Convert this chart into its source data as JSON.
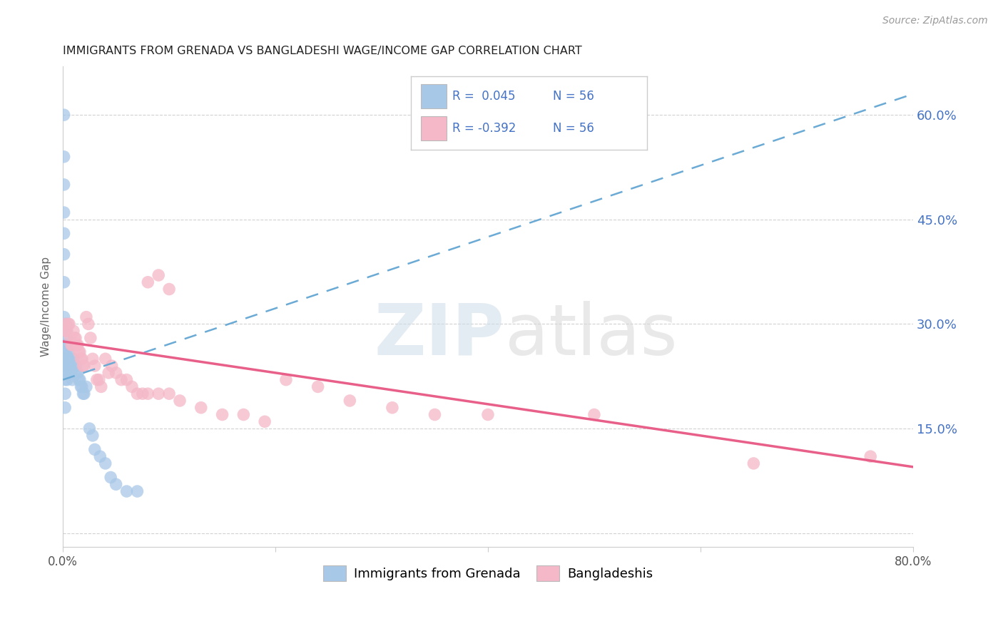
{
  "title": "IMMIGRANTS FROM GRENADA VS BANGLADESHI WAGE/INCOME GAP CORRELATION CHART",
  "source": "Source: ZipAtlas.com",
  "ylabel": "Wage/Income Gap",
  "right_yticklabels": [
    "",
    "15.0%",
    "30.0%",
    "45.0%",
    "60.0%"
  ],
  "xmin": 0.0,
  "xmax": 0.8,
  "ymin": -0.02,
  "ymax": 0.67,
  "legend_label1": "Immigrants from Grenada",
  "legend_label2": "Bangladeshis",
  "blue_color": "#a8c8e8",
  "blue_line_color": "#6aaad4",
  "pink_color": "#f4b8c8",
  "pink_line_color": "#e8608a",
  "watermark_zip": "ZIP",
  "watermark_atlas": "atlas",
  "bg_color": "#ffffff",
  "grid_color": "#cccccc",
  "title_color": "#222222",
  "right_axis_color": "#4472c4",
  "legend_text_color": "#4472c4",
  "blue_x": [
    0.001,
    0.001,
    0.001,
    0.001,
    0.001,
    0.001,
    0.001,
    0.001,
    0.001,
    0.002,
    0.002,
    0.002,
    0.002,
    0.002,
    0.002,
    0.002,
    0.003,
    0.003,
    0.003,
    0.003,
    0.003,
    0.004,
    0.004,
    0.004,
    0.004,
    0.005,
    0.005,
    0.005,
    0.006,
    0.006,
    0.007,
    0.007,
    0.008,
    0.009,
    0.01,
    0.011,
    0.012,
    0.013,
    0.014,
    0.015,
    0.016,
    0.017,
    0.018,
    0.019,
    0.02,
    0.022,
    0.025,
    0.028,
    0.03,
    0.035,
    0.04,
    0.045,
    0.05,
    0.06,
    0.07
  ],
  "blue_y": [
    0.6,
    0.54,
    0.5,
    0.46,
    0.43,
    0.4,
    0.36,
    0.31,
    0.27,
    0.26,
    0.25,
    0.24,
    0.23,
    0.22,
    0.2,
    0.18,
    0.3,
    0.29,
    0.28,
    0.27,
    0.26,
    0.25,
    0.24,
    0.23,
    0.22,
    0.26,
    0.25,
    0.24,
    0.25,
    0.24,
    0.24,
    0.23,
    0.23,
    0.22,
    0.25,
    0.24,
    0.24,
    0.23,
    0.23,
    0.22,
    0.22,
    0.21,
    0.21,
    0.2,
    0.2,
    0.21,
    0.15,
    0.14,
    0.12,
    0.11,
    0.1,
    0.08,
    0.07,
    0.06,
    0.06
  ],
  "pink_x": [
    0.002,
    0.003,
    0.004,
    0.005,
    0.006,
    0.007,
    0.008,
    0.009,
    0.01,
    0.011,
    0.012,
    0.013,
    0.014,
    0.015,
    0.016,
    0.017,
    0.018,
    0.019,
    0.02,
    0.022,
    0.024,
    0.026,
    0.028,
    0.03,
    0.032,
    0.034,
    0.036,
    0.04,
    0.043,
    0.046,
    0.05,
    0.055,
    0.06,
    0.065,
    0.07,
    0.075,
    0.08,
    0.09,
    0.1,
    0.11,
    0.13,
    0.15,
    0.17,
    0.19,
    0.21,
    0.24,
    0.27,
    0.31,
    0.35,
    0.4,
    0.5,
    0.65,
    0.76,
    0.08,
    0.09,
    0.1
  ],
  "pink_y": [
    0.3,
    0.29,
    0.29,
    0.3,
    0.3,
    0.28,
    0.27,
    0.27,
    0.29,
    0.28,
    0.28,
    0.27,
    0.27,
    0.26,
    0.26,
    0.25,
    0.25,
    0.24,
    0.24,
    0.31,
    0.3,
    0.28,
    0.25,
    0.24,
    0.22,
    0.22,
    0.21,
    0.25,
    0.23,
    0.24,
    0.23,
    0.22,
    0.22,
    0.21,
    0.2,
    0.2,
    0.2,
    0.2,
    0.2,
    0.19,
    0.18,
    0.17,
    0.17,
    0.16,
    0.22,
    0.21,
    0.19,
    0.18,
    0.17,
    0.17,
    0.17,
    0.1,
    0.11,
    0.36,
    0.37,
    0.35
  ],
  "blue_trend_x": [
    0.0,
    0.8
  ],
  "blue_trend_y": [
    0.22,
    0.63
  ],
  "pink_trend_x": [
    0.0,
    0.8
  ],
  "pink_trend_y": [
    0.275,
    0.095
  ]
}
